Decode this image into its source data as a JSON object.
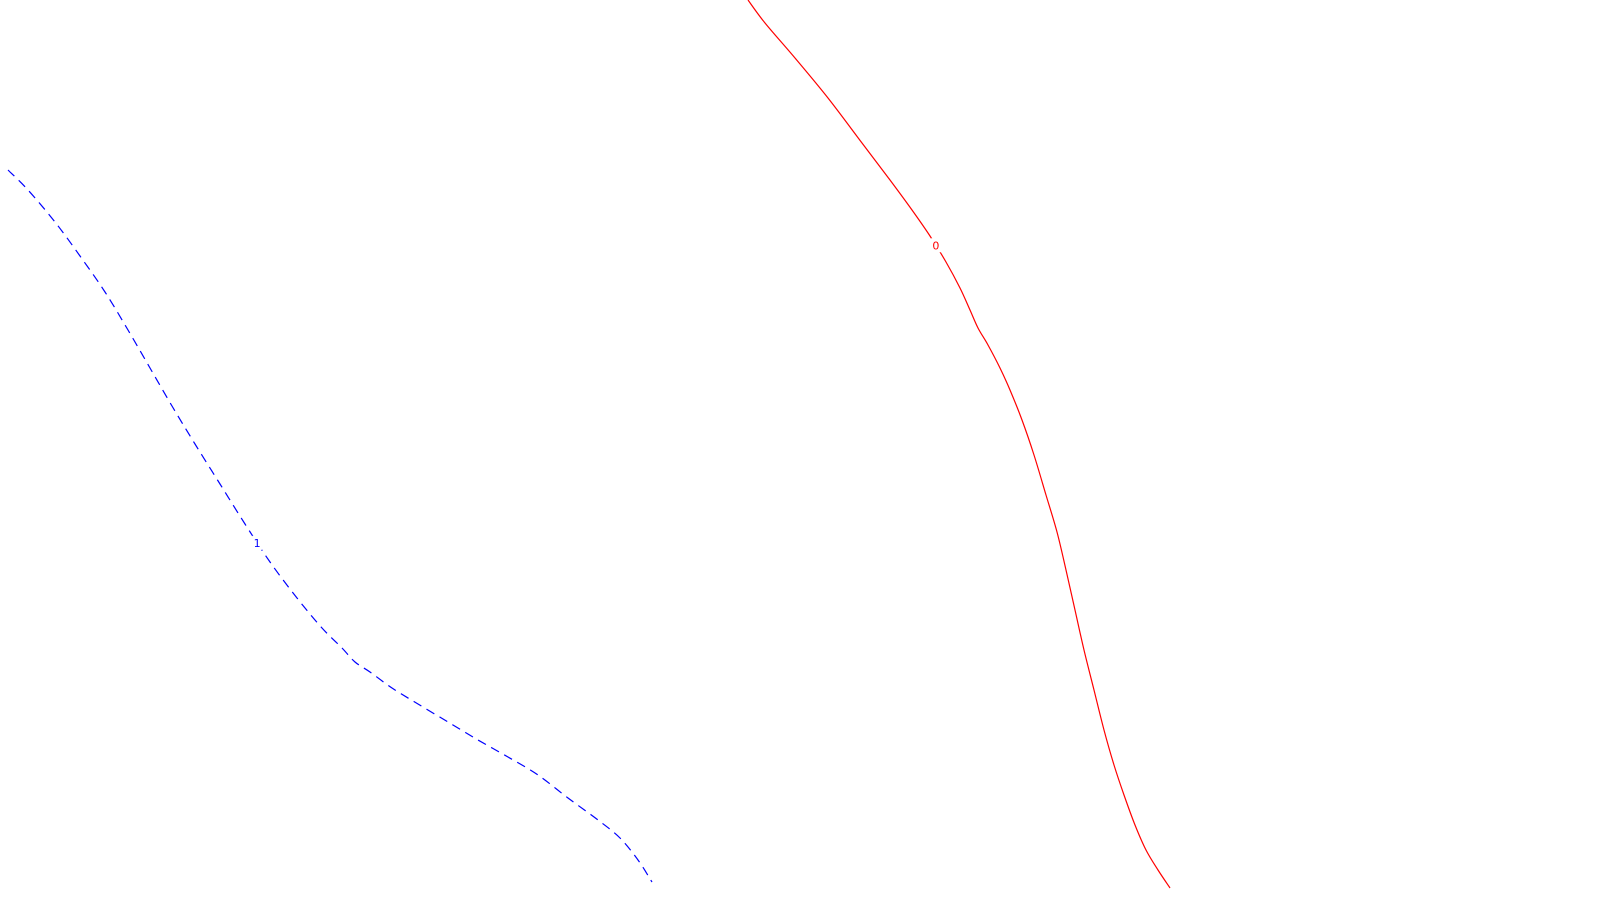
{
  "chart_data": {
    "type": "line",
    "grid": false,
    "series": [
      {
        "name": "",
        "label": "0",
        "color": "#ff0000",
        "dash": "solid",
        "label_at": 0.31,
        "points": [
          [
            748,
            0
          ],
          [
            765,
            23
          ],
          [
            795,
            58
          ],
          [
            828,
            98
          ],
          [
            862,
            143
          ],
          [
            890,
            180
          ],
          [
            912,
            210
          ],
          [
            930,
            236
          ],
          [
            946,
            262
          ],
          [
            960,
            288
          ],
          [
            970,
            310
          ],
          [
            978,
            328
          ],
          [
            988,
            345
          ],
          [
            1000,
            368
          ],
          [
            1010,
            390
          ],
          [
            1022,
            420
          ],
          [
            1034,
            455
          ],
          [
            1046,
            495
          ],
          [
            1057,
            532
          ],
          [
            1066,
            570
          ],
          [
            1075,
            610
          ],
          [
            1084,
            650
          ],
          [
            1094,
            690
          ],
          [
            1104,
            730
          ],
          [
            1114,
            765
          ],
          [
            1124,
            795
          ],
          [
            1135,
            825
          ],
          [
            1146,
            850
          ],
          [
            1158,
            870
          ],
          [
            1170,
            888
          ]
        ]
      },
      {
        "name": "",
        "label": "1",
        "color": "#0000ff",
        "dash": "dashed",
        "label_at": 0.46,
        "points": [
          [
            8,
            170
          ],
          [
            28,
            190
          ],
          [
            55,
            222
          ],
          [
            80,
            256
          ],
          [
            105,
            292
          ],
          [
            128,
            330
          ],
          [
            150,
            368
          ],
          [
            172,
            406
          ],
          [
            195,
            444
          ],
          [
            220,
            484
          ],
          [
            245,
            524
          ],
          [
            270,
            562
          ],
          [
            297,
            598
          ],
          [
            322,
            628
          ],
          [
            342,
            648
          ],
          [
            355,
            662
          ],
          [
            370,
            672
          ],
          [
            392,
            688
          ],
          [
            418,
            704
          ],
          [
            448,
            722
          ],
          [
            478,
            740
          ],
          [
            508,
            757
          ],
          [
            538,
            775
          ],
          [
            568,
            798
          ],
          [
            598,
            820
          ],
          [
            620,
            838
          ],
          [
            638,
            860
          ],
          [
            652,
            882
          ]
        ]
      }
    ]
  }
}
